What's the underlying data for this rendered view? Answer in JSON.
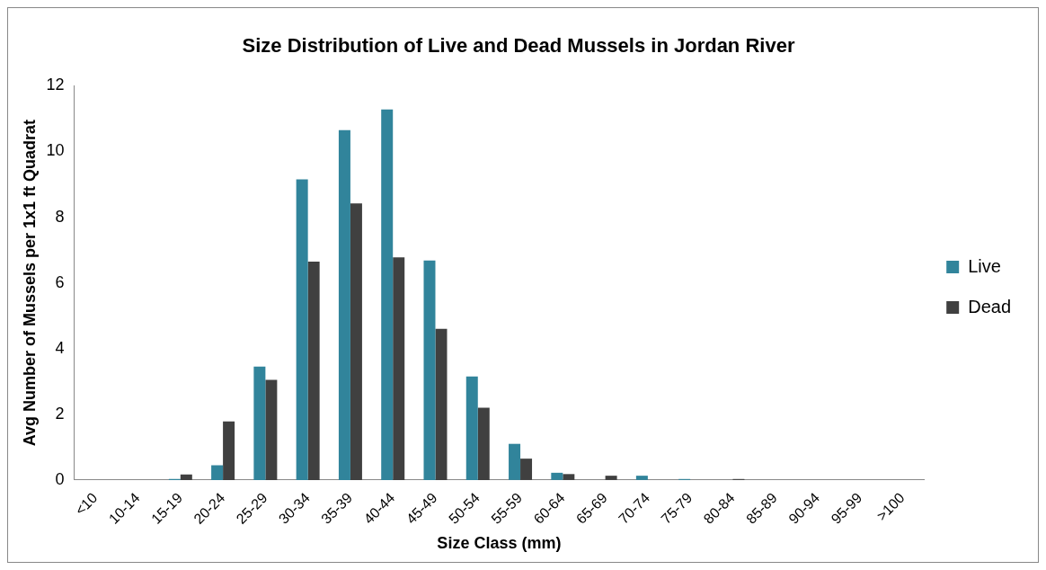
{
  "chart_data": {
    "type": "bar",
    "title": "Size Distribution of Live and Dead Mussels in Jordan River",
    "xlabel": "Size Class (mm)",
    "ylabel": "Avg Number of Mussels per 1x1 ft Quadrat",
    "categories": [
      "<10",
      "10-14",
      "15-19",
      "20-24",
      "25-29",
      "30-34",
      "35-39",
      "40-44",
      "45-49",
      "50-54",
      "55-59",
      "60-64",
      "65-69",
      "70-74",
      "75-79",
      "80-84",
      "85-89",
      "90-94",
      "95-99",
      ">100"
    ],
    "series": [
      {
        "name": "Live",
        "color": "#31849b",
        "values": [
          0,
          0,
          0.03,
          0.45,
          3.45,
          9.15,
          10.65,
          11.28,
          6.68,
          3.15,
          1.1,
          0.22,
          0,
          0.13,
          0.03,
          0,
          0,
          0,
          0,
          0
        ]
      },
      {
        "name": "Dead",
        "color": "#404040",
        "values": [
          0,
          0,
          0.17,
          1.78,
          3.05,
          6.65,
          8.42,
          6.78,
          4.6,
          2.2,
          0.65,
          0.18,
          0.13,
          0,
          0,
          0.03,
          0,
          0,
          0,
          0
        ]
      }
    ],
    "ylim": [
      0,
      12
    ],
    "yticks": [
      0,
      2,
      4,
      6,
      8,
      10,
      12
    ],
    "grid": false,
    "legend": "right"
  }
}
